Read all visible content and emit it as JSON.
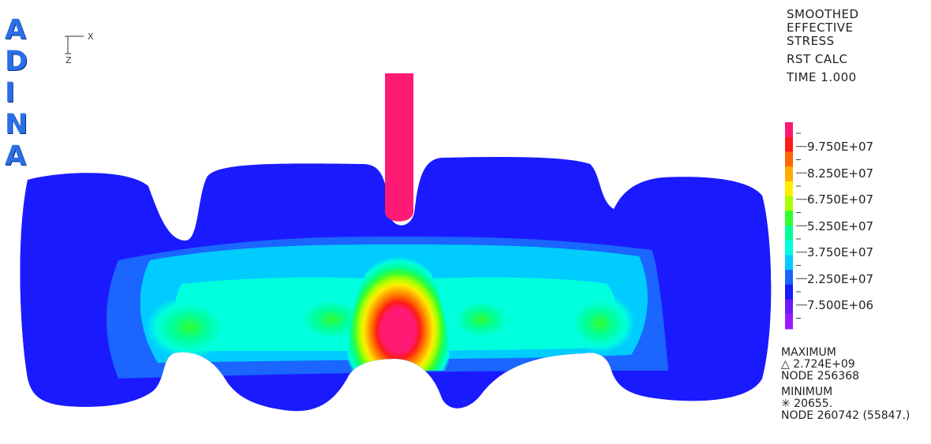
{
  "logo": {
    "letters": [
      "A",
      "D",
      "I",
      "N",
      "A"
    ]
  },
  "axes": {
    "x_label": "X",
    "z_label": "Z"
  },
  "title_block": {
    "line1": "SMOOTHED",
    "line2": "EFFECTIVE",
    "line3": "STRESS",
    "calc": "RST CALC",
    "time": "TIME 1.000"
  },
  "legend": {
    "labels": [
      "9.750E+07",
      "8.250E+07",
      "6.750E+07",
      "5.250E+07",
      "3.750E+07",
      "2.250E+07",
      "7.500E+06"
    ],
    "colors": [
      "#ff1a73",
      "#ff1a1a",
      "#ff6600",
      "#ffaa00",
      "#ffee00",
      "#aaff00",
      "#33ff33",
      "#00ff99",
      "#00ffdd",
      "#00ccff",
      "#1a66ff",
      "#1a1aff",
      "#6a1aff",
      "#9a1aff"
    ]
  },
  "stats": {
    "max_title": "MAXIMUM",
    "max_value": "△  2.724E+09",
    "max_node": "NODE 256368",
    "min_title": "MINIMUM",
    "min_value": "✳  20655.",
    "min_node": "NODE 260742 (55847.)"
  }
}
